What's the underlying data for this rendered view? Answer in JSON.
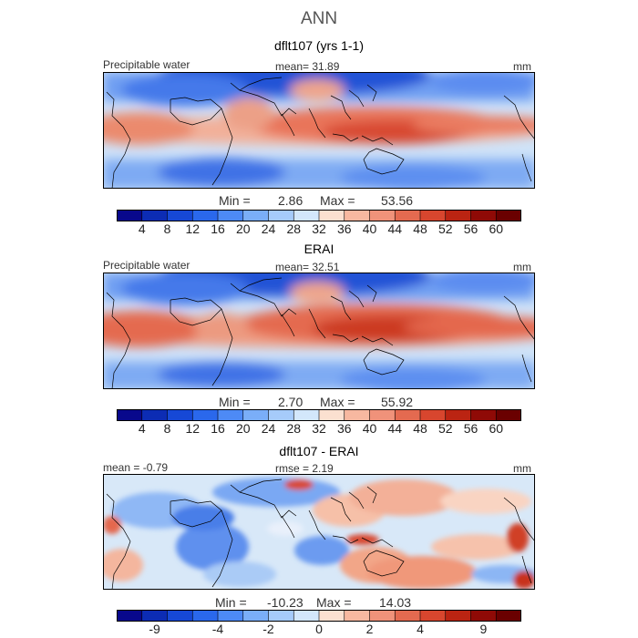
{
  "figure": {
    "title": "ANN",
    "colors": {
      "diverging_scale": [
        "#08088c",
        "#0c2cb4",
        "#1648d6",
        "#2a68ec",
        "#4d8af6",
        "#7aaef8",
        "#a6cbfa",
        "#d3e7fb",
        "#fbe0d0",
        "#f7b8a0",
        "#f0927a",
        "#e46a50",
        "#d8462e",
        "#bb2412",
        "#8f0a06",
        "#6a0000"
      ],
      "coastline": "#000000",
      "border": "#000000"
    }
  },
  "panels": [
    {
      "title": "dflt107 (yrs 1-1)",
      "left_label": "Precipitable water",
      "center_label": "mean=  31.89",
      "right_label": "mm",
      "min_label": "Min =",
      "min_value": "2.86",
      "max_label": "Max =",
      "max_value": "53.56",
      "ticks": [
        "4",
        "8",
        "12",
        "16",
        "20",
        "24",
        "28",
        "32",
        "36",
        "40",
        "44",
        "48",
        "52",
        "56",
        "60"
      ]
    },
    {
      "title": "ERAI",
      "left_label": "Precipitable water",
      "center_label": "mean=  32.51",
      "right_label": "mm",
      "min_label": "Min =",
      "min_value": "2.70",
      "max_label": "Max =",
      "max_value": "55.92",
      "ticks": [
        "4",
        "8",
        "12",
        "16",
        "20",
        "24",
        "28",
        "32",
        "36",
        "40",
        "44",
        "48",
        "52",
        "56",
        "60"
      ]
    },
    {
      "title": "dflt107 - ERAI",
      "left_label": "mean =  -0.79",
      "center_label": "rmse =   2.19",
      "right_label": "mm",
      "min_label": "Min =",
      "min_value": "-10.23",
      "max_label": "Max =",
      "max_value": "14.03",
      "ticks": [
        "-9",
        "-4",
        "-2",
        "0",
        "2",
        "4",
        "9"
      ]
    }
  ]
}
